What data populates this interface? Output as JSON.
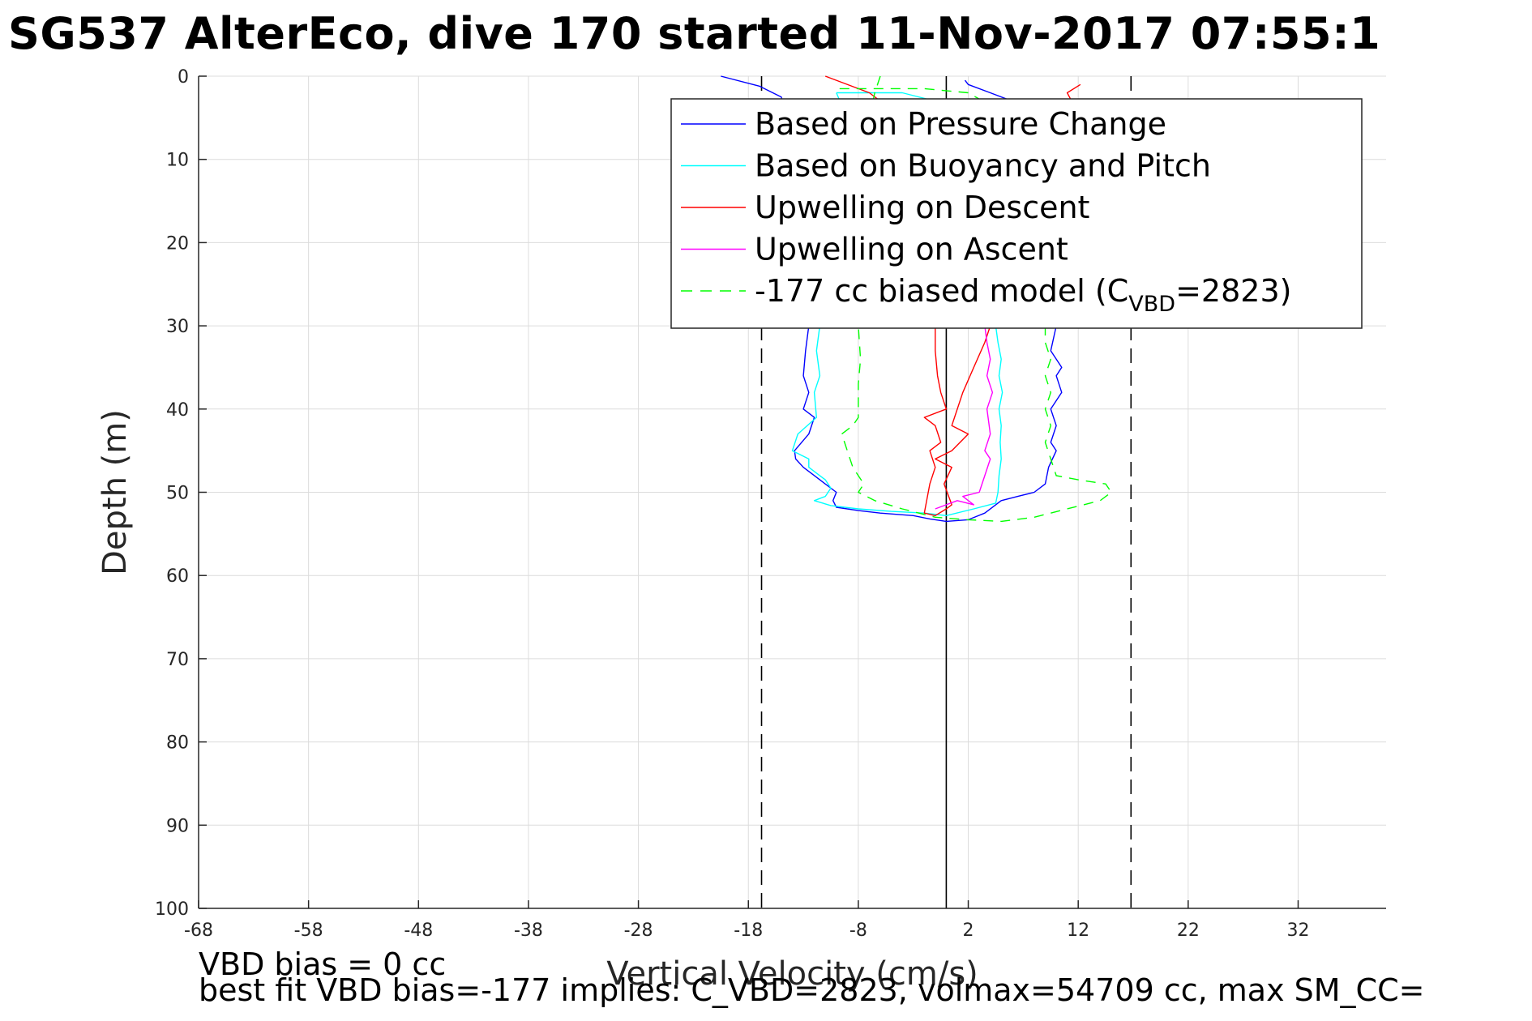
{
  "title": "SG537 AlterEco, dive 170 started 11-Nov-2017 07:55:1",
  "footer": {
    "line1": "VBD bias = 0 cc",
    "line2": "best fit VBD bias=-177 implies: C_VBD=2823, volmax=54709 cc, max SM_CC="
  },
  "chart_data": {
    "type": "line",
    "xlabel": "Vertical Velocity (cm/s)",
    "ylabel": "Depth (m)",
    "xlim": [
      -68,
      40
    ],
    "ylim": [
      0,
      100
    ],
    "y_reversed": true,
    "grid": true,
    "x_ticks": [
      -68,
      -58,
      -48,
      -38,
      -28,
      -18,
      -8,
      2,
      12,
      22,
      32
    ],
    "y_ticks": [
      0,
      10,
      20,
      30,
      40,
      50,
      60,
      70,
      80,
      90,
      100
    ],
    "reference_lines": [
      {
        "x": 0,
        "style": "solid",
        "color": "#000000"
      },
      {
        "x": -16.8,
        "style": "dashed",
        "color": "#000000"
      },
      {
        "x": 16.8,
        "style": "dashed",
        "color": "#000000"
      }
    ],
    "legend_position": "top-right",
    "legend": [
      {
        "label": "Based on Pressure Change",
        "color": "#0000ff",
        "dash": "none"
      },
      {
        "label": "Based on Buoyancy and Pitch",
        "color": "#00ffff",
        "dash": "none"
      },
      {
        "label": "Upwelling on Descent",
        "color": "#ff0000",
        "dash": "none"
      },
      {
        "label": "Upwelling on Ascent",
        "color": "#ff00ff",
        "dash": "none"
      },
      {
        "label_main": "-177 cc biased model (C",
        "label_sub": "VBD",
        "label_tail": "=2823)",
        "color": "#00ff00",
        "dash": "14,10"
      }
    ],
    "series": [
      {
        "color": "#0000ff",
        "points": [
          [
            -20.5,
            0
          ],
          [
            -17,
            1.2
          ],
          [
            -15,
            2.5
          ],
          [
            -14.5,
            5
          ],
          [
            -13.5,
            10
          ],
          [
            -13,
            20
          ],
          [
            -12.5,
            30
          ],
          [
            -12.8,
            33
          ],
          [
            -13,
            36
          ],
          [
            -12.5,
            38
          ],
          [
            -13,
            40
          ],
          [
            -12,
            41
          ],
          [
            -12.5,
            43
          ],
          [
            -13.8,
            45
          ],
          [
            -13.7,
            46
          ],
          [
            -13,
            47
          ],
          [
            -11.5,
            48.5
          ],
          [
            -10,
            50
          ],
          [
            -10.3,
            51
          ],
          [
            -10,
            51.8
          ],
          [
            -8,
            52.2
          ],
          [
            -6,
            52.5
          ],
          [
            -3,
            52.8
          ],
          [
            -1.5,
            53.2
          ],
          [
            0,
            53.5
          ],
          [
            2,
            53.3
          ],
          [
            3.5,
            52.5
          ],
          [
            5,
            51
          ],
          [
            6.5,
            50.5
          ],
          [
            8,
            50
          ],
          [
            9,
            49
          ],
          [
            9.3,
            47
          ],
          [
            10,
            45
          ],
          [
            9.5,
            44
          ],
          [
            10,
            42
          ],
          [
            9.5,
            40
          ],
          [
            10.5,
            38
          ],
          [
            10,
            36
          ],
          [
            10.5,
            35
          ],
          [
            9.5,
            33
          ],
          [
            10,
            30
          ],
          [
            9.5,
            20
          ],
          [
            9,
            10
          ],
          [
            8.5,
            5
          ],
          [
            6,
            3
          ],
          [
            4,
            2
          ],
          [
            2,
            1
          ],
          [
            1.7,
            0.5
          ]
        ]
      },
      {
        "color": "#00ffff",
        "points": [
          [
            -10,
            2
          ],
          [
            -9,
            5
          ],
          [
            -9.5,
            10
          ],
          [
            -11,
            20
          ],
          [
            -11.5,
            30
          ],
          [
            -11.8,
            33
          ],
          [
            -11.5,
            36
          ],
          [
            -12,
            38
          ],
          [
            -11.8,
            41
          ],
          [
            -13.5,
            43
          ],
          [
            -14,
            45
          ],
          [
            -12.5,
            46
          ],
          [
            -12.5,
            47
          ],
          [
            -11,
            48.5
          ],
          [
            -10.5,
            49.5
          ],
          [
            -11,
            50.5
          ],
          [
            -12,
            51
          ],
          [
            -10.5,
            51.6
          ],
          [
            -8,
            52
          ],
          [
            -5,
            52.3
          ],
          [
            -2,
            52.5
          ],
          [
            0,
            52.8
          ],
          [
            2.5,
            52
          ],
          [
            4.5,
            51.3
          ],
          [
            4.7,
            50
          ],
          [
            4.8,
            48
          ],
          [
            5,
            46
          ],
          [
            4.9,
            44
          ],
          [
            5,
            42
          ],
          [
            4.8,
            40
          ],
          [
            5.1,
            38
          ],
          [
            4.8,
            36
          ],
          [
            5,
            34
          ],
          [
            4.7,
            32
          ],
          [
            4.5,
            30
          ],
          [
            4,
            20
          ],
          [
            3,
            10
          ],
          [
            1,
            5
          ],
          [
            -1,
            3
          ],
          [
            -4,
            2
          ],
          [
            -7,
            2
          ],
          [
            -10,
            2
          ]
        ]
      },
      {
        "color": "#ff0000",
        "points": [
          [
            -11,
            0
          ],
          [
            -7,
            2
          ],
          [
            -5,
            4
          ],
          [
            -6,
            8
          ],
          [
            -4,
            15
          ],
          [
            -2,
            25
          ],
          [
            -1,
            30
          ],
          [
            -1,
            33
          ],
          [
            -0.8,
            36
          ],
          [
            -0.5,
            38
          ],
          [
            0,
            40
          ],
          [
            -2,
            41
          ],
          [
            -1,
            42
          ],
          [
            -0.5,
            44
          ],
          [
            -1.5,
            45
          ],
          [
            -1,
            47
          ],
          [
            -1.5,
            49
          ],
          [
            -2,
            52.5
          ],
          [
            -1,
            52.8
          ],
          [
            0,
            52
          ],
          [
            0.5,
            51.5
          ],
          [
            -0.2,
            49
          ],
          [
            0.5,
            47
          ],
          [
            -1,
            46
          ],
          [
            0.5,
            45
          ],
          [
            2,
            43
          ],
          [
            0.5,
            42
          ],
          [
            1.5,
            38
          ],
          [
            2.5,
            35
          ],
          [
            3.5,
            32
          ],
          [
            4,
            30
          ],
          [
            10,
            20
          ],
          [
            12,
            10
          ],
          [
            11.8,
            4
          ],
          [
            11,
            2
          ],
          [
            12.2,
            1
          ]
        ]
      },
      {
        "color": "#ff00ff",
        "points": [
          [
            -1,
            52
          ],
          [
            0,
            51.5
          ],
          [
            1,
            51
          ],
          [
            2.5,
            51.5
          ],
          [
            1.5,
            50.5
          ],
          [
            3,
            50
          ],
          [
            3.5,
            48
          ],
          [
            4,
            46
          ],
          [
            3.5,
            45
          ],
          [
            4,
            43
          ],
          [
            3.7,
            40
          ],
          [
            4.2,
            38
          ],
          [
            3.7,
            36
          ],
          [
            4,
            34
          ],
          [
            3.7,
            32
          ],
          [
            3.5,
            30
          ],
          [
            3,
            20
          ],
          [
            2.5,
            10
          ],
          [
            2,
            5
          ],
          [
            1.5,
            3
          ]
        ]
      },
      {
        "color": "#00ff00",
        "dash": "12,9",
        "points": [
          [
            -6,
            0
          ],
          [
            -6.5,
            2
          ],
          [
            -7,
            5
          ],
          [
            -7.5,
            10
          ],
          [
            -7.8,
            20
          ],
          [
            -8,
            30
          ],
          [
            -7.8,
            34
          ],
          [
            -8,
            37
          ],
          [
            -8,
            41
          ],
          [
            -8.5,
            42
          ],
          [
            -9.5,
            43
          ],
          [
            -9,
            45
          ],
          [
            -8.5,
            47
          ],
          [
            -8,
            48
          ],
          [
            -7.5,
            49
          ],
          [
            -8,
            50
          ],
          [
            -6.5,
            51
          ],
          [
            -4,
            52
          ],
          [
            -1,
            53
          ],
          [
            2,
            53.3
          ],
          [
            5,
            53.5
          ],
          [
            8,
            53
          ],
          [
            11,
            52
          ],
          [
            14,
            51
          ],
          [
            15,
            50
          ],
          [
            14.5,
            49
          ],
          [
            12,
            48.5
          ],
          [
            10,
            48
          ],
          [
            9.5,
            46
          ],
          [
            9,
            44
          ],
          [
            9.5,
            42
          ],
          [
            9,
            40
          ],
          [
            9.5,
            38
          ],
          [
            9,
            36
          ],
          [
            9.5,
            34
          ],
          [
            9,
            32
          ],
          [
            9,
            30
          ],
          [
            8.5,
            20
          ],
          [
            7.5,
            10
          ],
          [
            6,
            5
          ],
          [
            2,
            2
          ],
          [
            -2,
            1.5
          ],
          [
            -5,
            1.5
          ],
          [
            -8,
            1.5
          ],
          [
            -10,
            1.5
          ]
        ]
      }
    ]
  }
}
